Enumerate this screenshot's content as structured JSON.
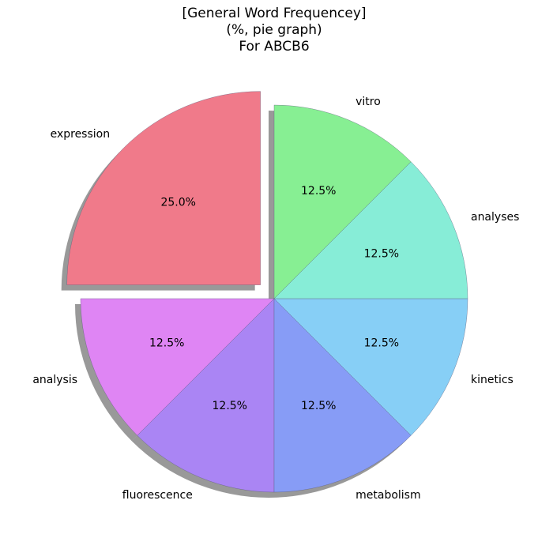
{
  "chart_data": {
    "type": "pie",
    "title_lines": [
      "[General Word Frequencey]",
      "(%, pie graph)",
      "For ABCB6"
    ],
    "slices": [
      {
        "label": "expression",
        "value": 25.0,
        "pct_text": "25.0%",
        "color": "#f07a8a",
        "exploded": true
      },
      {
        "label": "analysis",
        "value": 12.5,
        "pct_text": "12.5%",
        "color": "#df85f4",
        "exploded": false
      },
      {
        "label": "fluorescence",
        "value": 12.5,
        "pct_text": "12.5%",
        "color": "#aa85f4",
        "exploded": false
      },
      {
        "label": "metabolism",
        "value": 12.5,
        "pct_text": "12.5%",
        "color": "#879cf6",
        "exploded": false
      },
      {
        "label": "kinetics",
        "value": 12.5,
        "pct_text": "12.5%",
        "color": "#87cff6",
        "exploded": false
      },
      {
        "label": "analyses",
        "value": 12.5,
        "pct_text": "12.5%",
        "color": "#87edd7",
        "exploded": false
      },
      {
        "label": "vitro",
        "value": 12.5,
        "pct_text": "12.5%",
        "color": "#87ef93",
        "exploded": false
      }
    ],
    "start_angle_deg": 90,
    "direction": "counterclockwise",
    "shadow": true
  }
}
